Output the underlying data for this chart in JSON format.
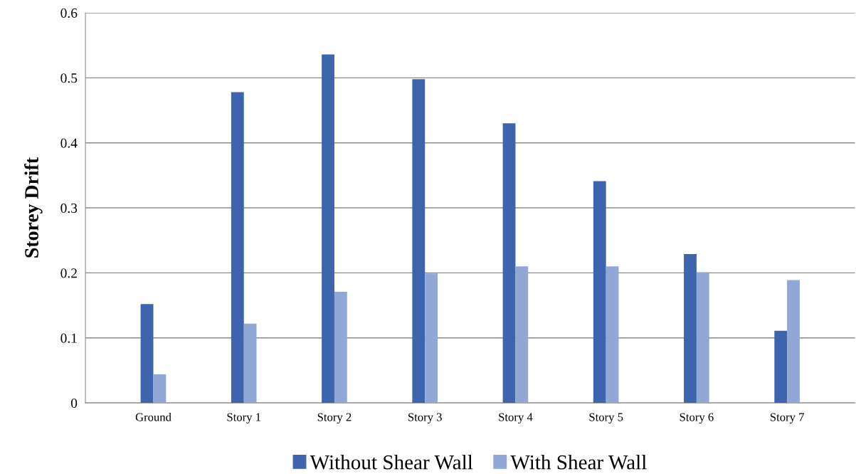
{
  "chart_data": {
    "type": "bar",
    "ylabel": "Storey Drift",
    "categories": [
      "Ground",
      "Story 1",
      "Story 2",
      "Story 3",
      "Story 4",
      "Story 5",
      "Story 6",
      "Story 7"
    ],
    "series": [
      {
        "name": "Without Shear Wall",
        "color": "#3d64ad",
        "values": [
          0.152,
          0.478,
          0.536,
          0.498,
          0.43,
          0.341,
          0.229,
          0.111
        ]
      },
      {
        "name": "With Shear Wall",
        "color": "#91a7d6",
        "values": [
          0.044,
          0.122,
          0.171,
          0.199,
          0.21,
          0.21,
          0.201,
          0.189
        ]
      }
    ],
    "ylim": [
      0,
      0.6
    ],
    "yticks": [
      {
        "value": 0,
        "label": "0"
      },
      0.1,
      0.2,
      0.3,
      0.4,
      0.5,
      0.6
    ],
    "grid": "y",
    "legend": "bottom"
  }
}
